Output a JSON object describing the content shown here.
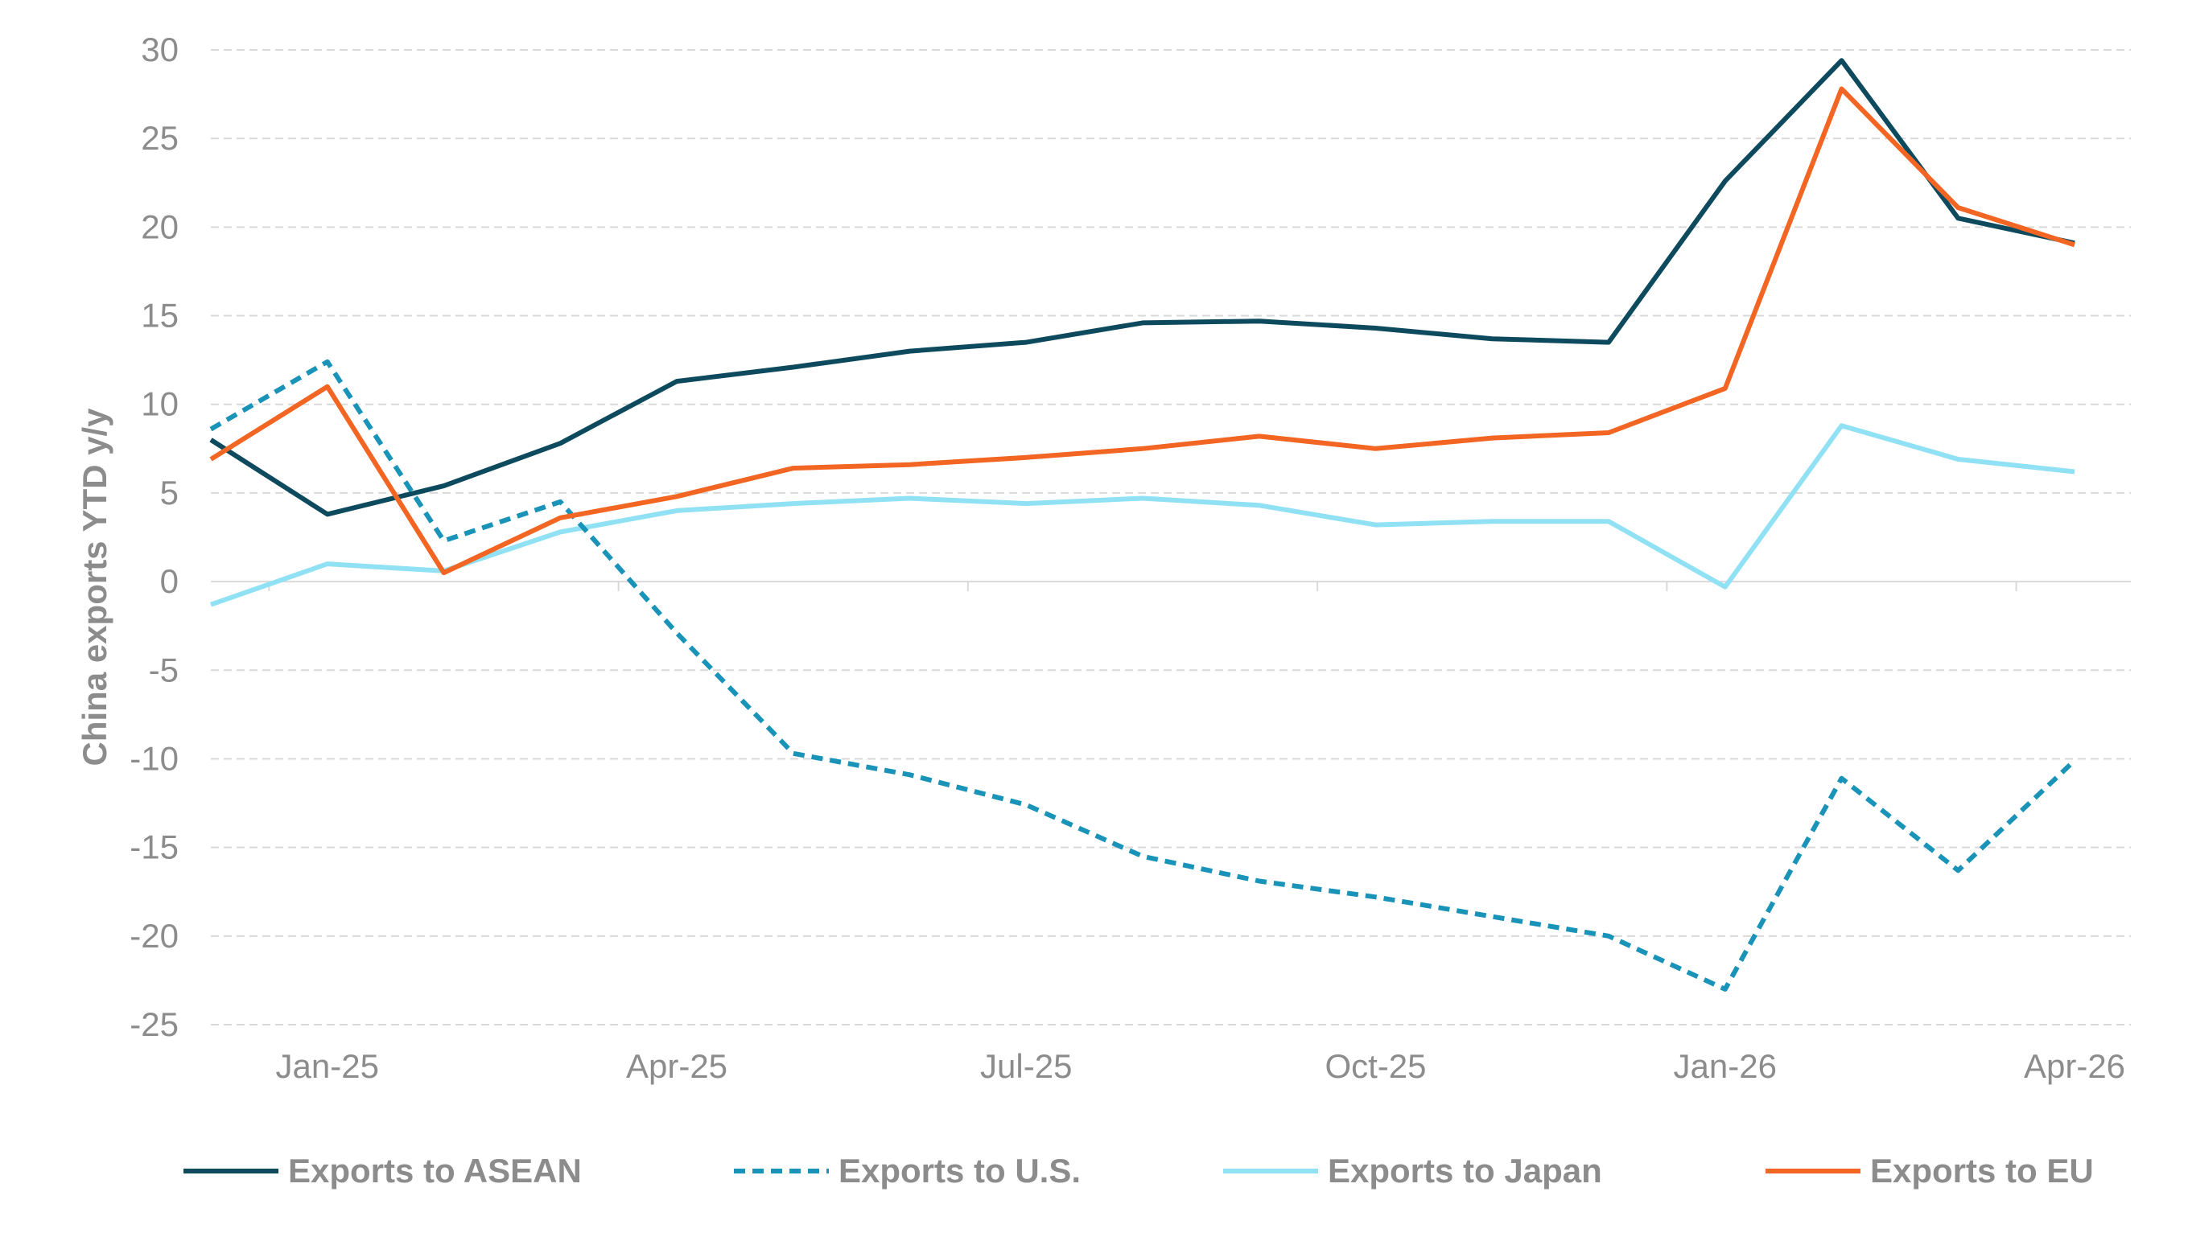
{
  "chart_data": {
    "type": "line",
    "ylabel": "China exports YTD y/y",
    "xlabel": "",
    "ylim": [
      -25,
      30
    ],
    "yticks": [
      30,
      25,
      20,
      15,
      10,
      5,
      0,
      -5,
      -10,
      -15,
      -20,
      -25
    ],
    "grid": true,
    "legend_position": "bottom",
    "x": [
      "Dec-24",
      "Jan-25",
      "Feb-25",
      "Mar-25",
      "Apr-25",
      "May-25",
      "Jun-25",
      "Jul-25",
      "Aug-25",
      "Sep-25",
      "Oct-25",
      "Nov-25",
      "Dec-25",
      "Jan-26",
      "Feb-26",
      "Mar-26",
      "Apr-26"
    ],
    "x_tick_labels": [
      {
        "index": 1,
        "label": "Jan-25"
      },
      {
        "index": 4,
        "label": "Apr-25"
      },
      {
        "index": 7,
        "label": "Jul-25"
      },
      {
        "index": 10,
        "label": "Oct-25"
      },
      {
        "index": 13,
        "label": "Jan-26"
      },
      {
        "index": 16,
        "label": "Apr-26"
      }
    ],
    "series": [
      {
        "name": "Exports to ASEAN",
        "color": "#0e4a5e",
        "dash": "solid",
        "values": [
          8.0,
          3.8,
          5.4,
          7.8,
          11.3,
          12.1,
          13.0,
          13.5,
          14.6,
          14.7,
          14.3,
          13.7,
          13.5,
          22.6,
          29.4,
          20.5,
          19.1
        ]
      },
      {
        "name": "Exports to U.S.",
        "color": "#1a93b8",
        "dash": "dashed",
        "values": [
          8.6,
          12.4,
          2.3,
          4.5,
          -2.9,
          -9.7,
          -10.9,
          -12.6,
          -15.5,
          -16.9,
          -17.8,
          -18.9,
          -20.0,
          -23.0,
          -11.1,
          -16.3,
          -10.1
        ]
      },
      {
        "name": "Exports to Japan",
        "color": "#91e1f5",
        "dash": "solid",
        "values": [
          -1.3,
          1.0,
          0.6,
          2.8,
          4.0,
          4.4,
          4.7,
          4.4,
          4.7,
          4.3,
          3.2,
          3.4,
          3.4,
          -0.3,
          8.8,
          6.9,
          6.2
        ]
      },
      {
        "name": "Exports to EU",
        "color": "#f26522",
        "dash": "solid",
        "values": [
          6.9,
          11.0,
          0.5,
          3.6,
          4.8,
          6.4,
          6.6,
          7.0,
          7.5,
          8.2,
          7.5,
          8.1,
          8.4,
          10.9,
          27.8,
          21.1,
          19.0
        ]
      }
    ]
  }
}
